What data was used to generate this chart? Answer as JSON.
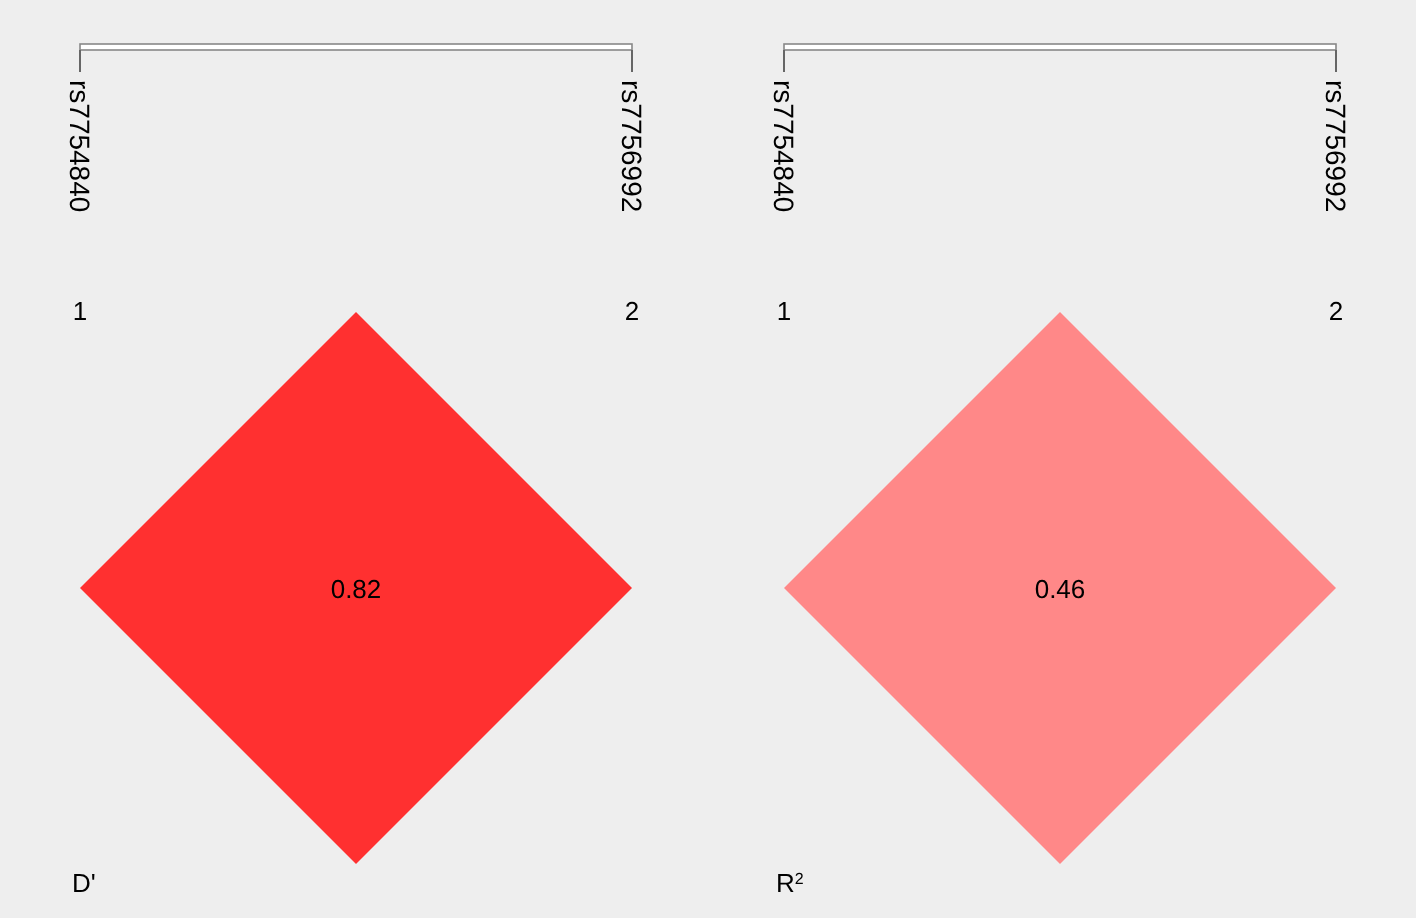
{
  "chart_data": [
    {
      "type": "other",
      "title": "D'",
      "categories": [
        null
      ],
      "values": [
        0.82
      ],
      "colors": [
        "#ff3030"
      ],
      "data_labels": true,
      "annotations": [
        "rs7754840",
        "rs7756992",
        "1",
        "2"
      ]
    },
    {
      "type": "other",
      "title": "R$^{2}$",
      "categories": [
        null
      ],
      "values": [
        0.46
      ],
      "colors": [
        "#ff8888"
      ],
      "data_labels": true,
      "annotations": [
        "rs7754840",
        "rs7756992",
        "1",
        "2"
      ]
    }
  ]
}
